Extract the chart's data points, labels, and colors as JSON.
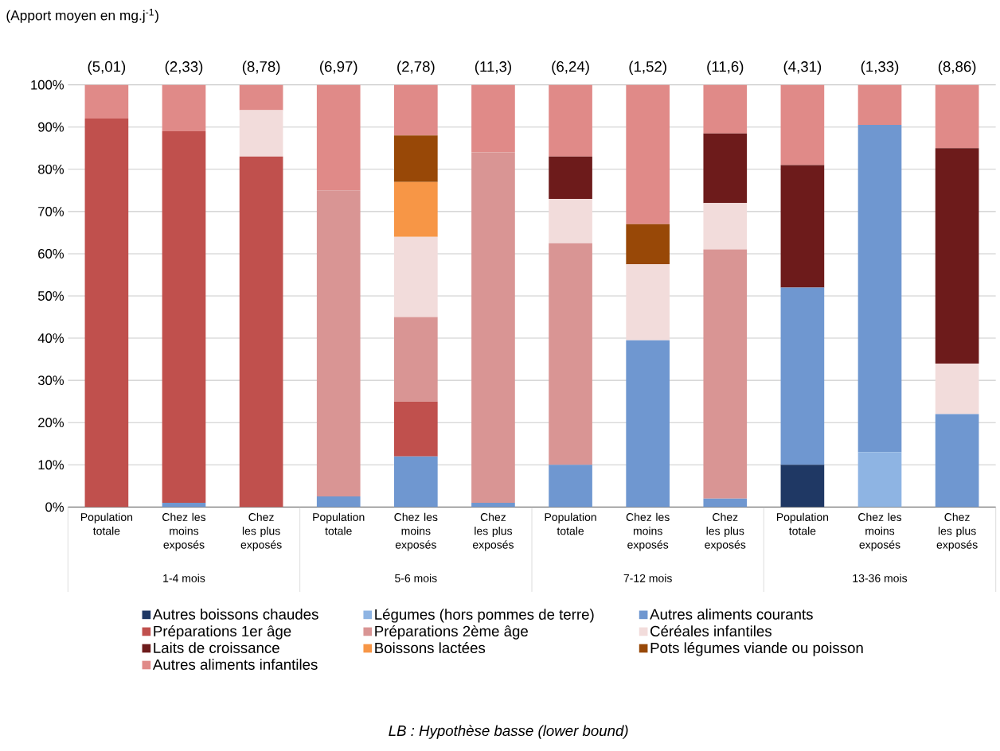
{
  "chart_data": {
    "type": "bar",
    "stacked": true,
    "title": "(Apport moyen en mg.j$^{-1}$)",
    "categories": [
      "Population totale",
      "Chez les moins exposés",
      "Chez les plus exposés",
      "Population totale",
      "Chez les moins exposés",
      "Chez les plus exposés",
      "Population totale",
      "Chez les moins exposés",
      "Chez les plus exposés",
      "Population totale",
      "Chez les moins exposés",
      "Chez les plus exposés"
    ],
    "series": [
      {
        "name": "Autres boissons chaudes",
        "color": "#1f3864",
        "values": [
          null,
          null,
          null,
          null,
          null,
          null,
          null,
          null,
          null,
          10,
          null,
          null
        ]
      },
      {
        "name": "Légumes (hors pommes de terre)",
        "color": "#8eb4e3",
        "values": [
          null,
          null,
          null,
          null,
          null,
          null,
          null,
          null,
          null,
          null,
          13,
          null
        ]
      },
      {
        "name": "Autres aliments courants",
        "color": "#6f97d0",
        "values": [
          null,
          1,
          null,
          2.5,
          12,
          1,
          10,
          39.5,
          2,
          42,
          77.5,
          22
        ]
      },
      {
        "name": "Préparations 1er âge",
        "color": "#c0504d",
        "values": [
          92,
          88,
          83,
          null,
          13,
          null,
          null,
          null,
          null,
          null,
          null,
          null
        ]
      },
      {
        "name": "Préparations 2ème âge",
        "color": "#d99594",
        "values": [
          null,
          null,
          null,
          72.5,
          20,
          83,
          52.5,
          null,
          59,
          null,
          null,
          null
        ]
      },
      {
        "name": "Céréales infantiles",
        "color": "#f2dcdb",
        "values": [
          null,
          null,
          11,
          null,
          19,
          null,
          10.5,
          18,
          11,
          null,
          null,
          12
        ]
      },
      {
        "name": "Laits de croissance",
        "color": "#6d1b1b",
        "values": [
          null,
          null,
          null,
          null,
          null,
          null,
          10,
          null,
          16.5,
          29,
          null,
          51
        ]
      },
      {
        "name": "Boissons lactées",
        "color": "#f79646",
        "values": [
          null,
          null,
          null,
          null,
          13,
          null,
          null,
          null,
          null,
          null,
          null,
          null
        ]
      },
      {
        "name": "Pots légumes viande ou poisson",
        "color": "#984807",
        "values": [
          null,
          null,
          null,
          null,
          11,
          null,
          null,
          9.5,
          null,
          null,
          null,
          null
        ]
      },
      {
        "name": "Autres aliments infantiles",
        "color": "#e08a88",
        "values": [
          8,
          11,
          6,
          25,
          12,
          16,
          17,
          33,
          11.5,
          19,
          9.5,
          15
        ]
      }
    ],
    "ylim": [
      0,
      100
    ],
    "yticks": [
      {
        "value": 0,
        "label": "0%"
      },
      {
        "value": 10,
        "label": "10%"
      },
      {
        "value": 20,
        "label": "20%"
      },
      {
        "value": 30,
        "label": "30%"
      },
      {
        "value": 40,
        "label": "40%"
      },
      {
        "value": 50,
        "label": "50%"
      },
      {
        "value": 60,
        "label": "60%"
      },
      {
        "value": 70,
        "label": "70%"
      },
      {
        "value": 80,
        "label": "80%"
      },
      {
        "value": 90,
        "label": "90%"
      },
      {
        "value": 100,
        "label": "100%"
      }
    ],
    "grid": "y",
    "legend": "bottom",
    "annotations": [
      "(5,01)",
      "(2,33)",
      "(8,78)",
      "(6,97)",
      "(2,78)",
      "(11,3)",
      "(6,24)",
      "(1,52)",
      "(11,6)",
      "(4,31)",
      "(1,33)",
      "(8,86)",
      "1-4 mois",
      "5-6 mois",
      "7-12 mois",
      "13-36 mois",
      "LB : Hypothèse basse (lower bound)"
    ]
  }
}
